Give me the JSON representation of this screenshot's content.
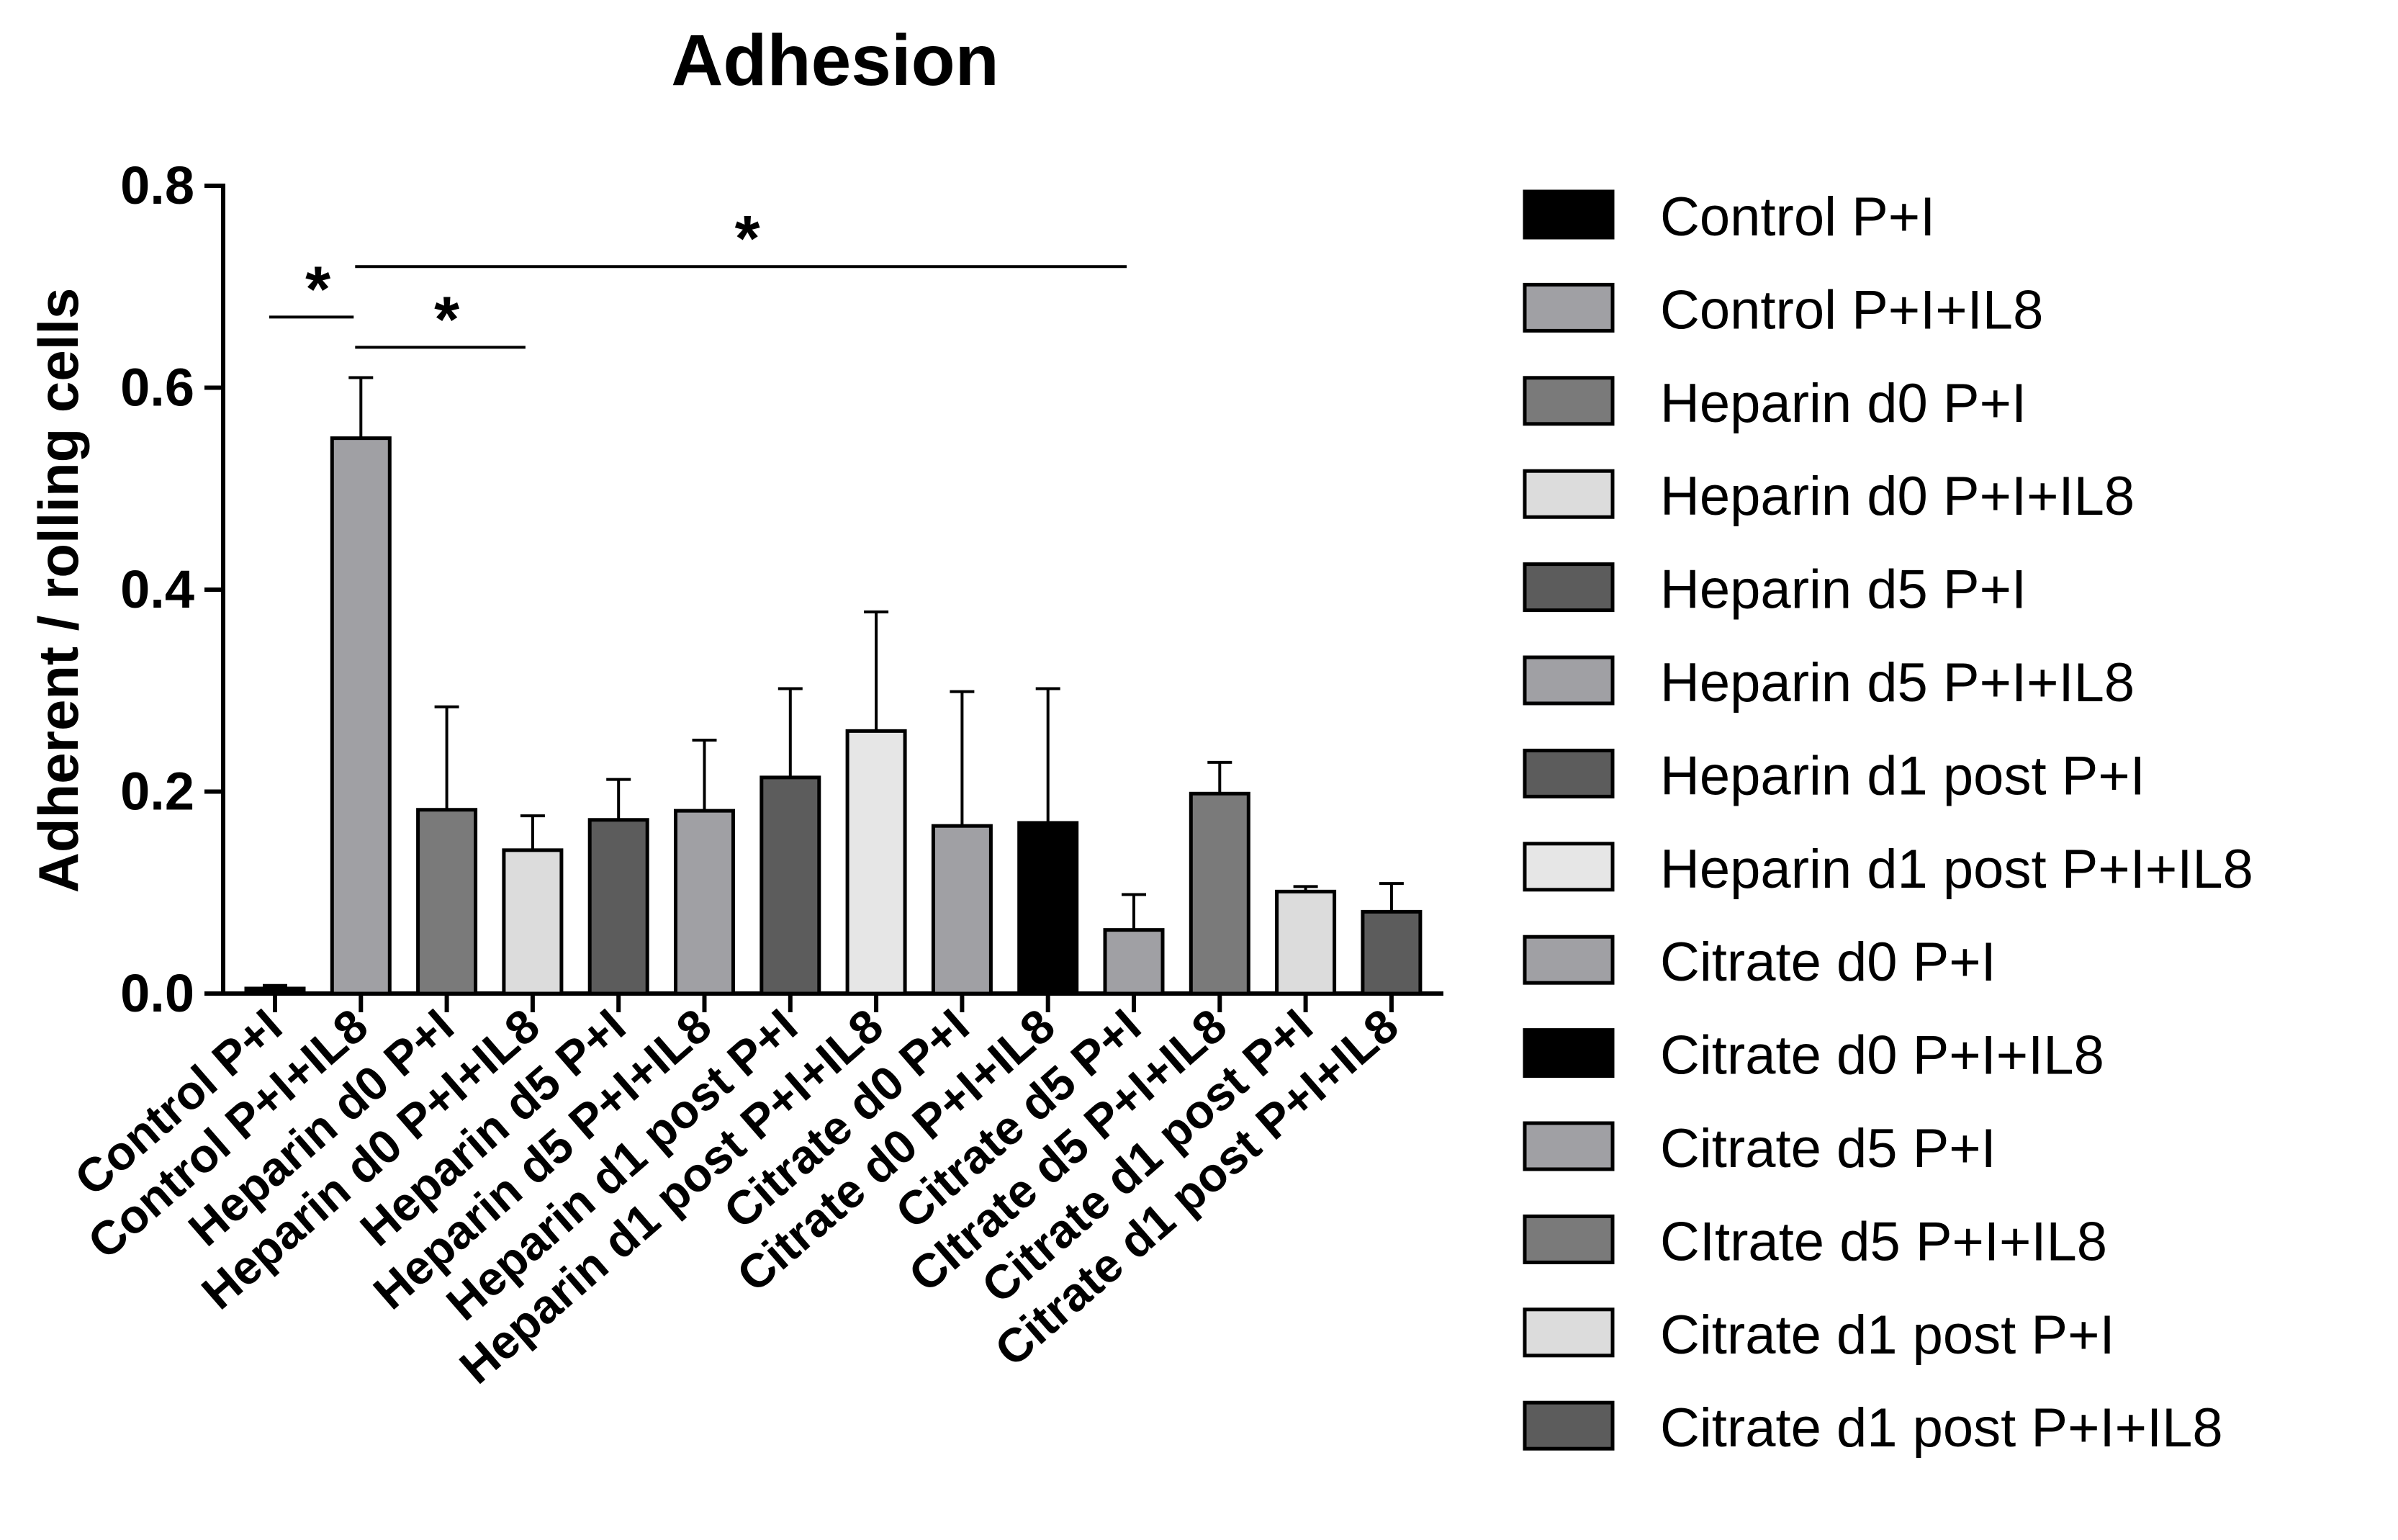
{
  "chart_data": {
    "type": "bar",
    "title": "Adhesion",
    "xlabel": "",
    "ylabel": "Adherent / rolling cells",
    "ylim": [
      0,
      0.8
    ],
    "yticks": [
      "0.0",
      "0.2",
      "0.4",
      "0.6",
      "0.8"
    ],
    "ytick_values": [
      0,
      0.2,
      0.4,
      0.6,
      0.8
    ],
    "grid": false,
    "legend_position": "right",
    "categories": [
      "Control P+I",
      "Control P+I+IL8",
      "Heparin d0 P+I",
      "Heparin d0 P+I+IL8",
      "Heparin d5 P+I",
      "Heparin d5 P+I+IL8",
      "Heparin d1 post P+I",
      "Heparin d1 post P+I+IL8",
      "Citrate d0 P+I",
      "Citrate d0 P+I+IL8",
      "Citrate d5 P+I",
      "CItrate d5 P+I+IL8",
      "Citrate d1 post P+I",
      "Citrate d1 post P+I+IL8"
    ],
    "values": [
      0.005,
      0.55,
      0.182,
      0.142,
      0.172,
      0.181,
      0.214,
      0.26,
      0.166,
      0.169,
      0.063,
      0.198,
      0.101,
      0.081
    ],
    "error_upper": [
      0.008,
      0.61,
      0.284,
      0.176,
      0.212,
      0.251,
      0.302,
      0.378,
      0.299,
      0.302,
      0.098,
      0.229,
      0.106,
      0.109
    ],
    "colors": [
      "#000000",
      "#a0a0a4",
      "#7a7a7a",
      "#dcdcdc",
      "#5c5c5c",
      "#a0a0a4",
      "#5c5c5c",
      "#e6e6e6",
      "#a0a0a4",
      "#000000",
      "#a0a0a4",
      "#7a7a7a",
      "#dcdcdc",
      "#5c5c5c"
    ],
    "legend": [
      "Control P+I",
      "Control P+I+IL8",
      "Heparin d0 P+I",
      "Heparin d0 P+I+IL8",
      "Heparin d5 P+I",
      "Heparin d5 P+I+IL8",
      "Heparin d1 post P+I",
      "Heparin d1 post P+I+IL8",
      "Citrate d0 P+I",
      "Citrate d0 P+I+IL8",
      "Citrate d5 P+I",
      "CItrate d5 P+I+IL8",
      "Citrate d1 post P+I",
      "Citrate d1 post P+I+IL8"
    ],
    "significance": [
      {
        "label": "*",
        "from": 0,
        "to": 1,
        "y": 0.67
      },
      {
        "label": "*",
        "from": 1,
        "to": 3,
        "y": 0.64
      },
      {
        "label": "*",
        "from": 1,
        "to": 10,
        "y": 0.72
      }
    ]
  }
}
